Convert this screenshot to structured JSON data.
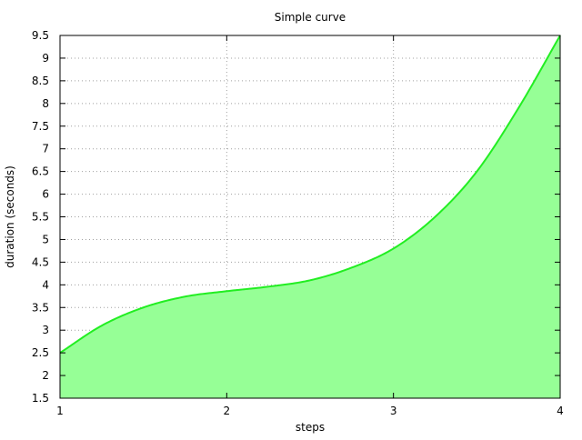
{
  "chart_data": {
    "type": "area",
    "title": "Simple curve",
    "xlabel": "steps",
    "ylabel": "duration (seconds)",
    "xlim": [
      1,
      4
    ],
    "ylim": [
      1.5,
      9.5
    ],
    "x_ticks": [
      "1",
      "2",
      "3",
      "4"
    ],
    "y_ticks": [
      "1.5",
      "2",
      "2.5",
      "3",
      "3.5",
      "4",
      "4.5",
      "5",
      "5.5",
      "6",
      "6.5",
      "7",
      "7.5",
      "8",
      "8.5",
      "9",
      "9.5"
    ],
    "grid": true,
    "legend": "none",
    "series": [
      {
        "x": [
          1,
          1.25,
          1.5,
          1.75,
          2,
          2.25,
          2.5,
          2.75,
          3,
          3.25,
          3.5,
          3.75,
          4
        ],
        "y": [
          2.5,
          3.1,
          3.5,
          3.74,
          3.86,
          3.96,
          4.1,
          4.38,
          4.8,
          5.5,
          6.5,
          7.9,
          9.5
        ],
        "line_color": "#22ee22",
        "fill_color": "#96ff96"
      }
    ]
  }
}
